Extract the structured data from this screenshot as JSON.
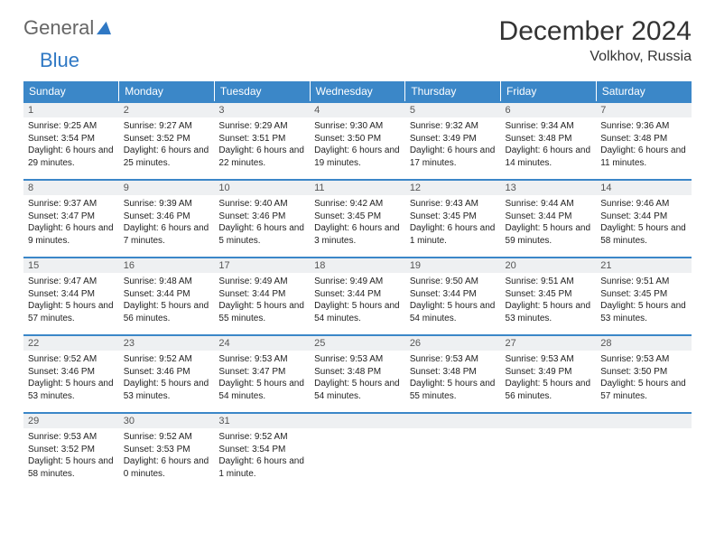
{
  "logo": {
    "text1": "General",
    "text2": "Blue"
  },
  "title": "December 2024",
  "location": "Volkhov, Russia",
  "colors": {
    "header_bg": "#3b87c8",
    "header_text": "#ffffff",
    "daynum_bg": "#eef0f2",
    "text": "#222222",
    "logo_blue": "#2f78c4"
  },
  "day_headers": [
    "Sunday",
    "Monday",
    "Tuesday",
    "Wednesday",
    "Thursday",
    "Friday",
    "Saturday"
  ],
  "weeks": [
    [
      {
        "n": "1",
        "sunrise": "Sunrise: 9:25 AM",
        "sunset": "Sunset: 3:54 PM",
        "day": "Daylight: 6 hours and 29 minutes."
      },
      {
        "n": "2",
        "sunrise": "Sunrise: 9:27 AM",
        "sunset": "Sunset: 3:52 PM",
        "day": "Daylight: 6 hours and 25 minutes."
      },
      {
        "n": "3",
        "sunrise": "Sunrise: 9:29 AM",
        "sunset": "Sunset: 3:51 PM",
        "day": "Daylight: 6 hours and 22 minutes."
      },
      {
        "n": "4",
        "sunrise": "Sunrise: 9:30 AM",
        "sunset": "Sunset: 3:50 PM",
        "day": "Daylight: 6 hours and 19 minutes."
      },
      {
        "n": "5",
        "sunrise": "Sunrise: 9:32 AM",
        "sunset": "Sunset: 3:49 PM",
        "day": "Daylight: 6 hours and 17 minutes."
      },
      {
        "n": "6",
        "sunrise": "Sunrise: 9:34 AM",
        "sunset": "Sunset: 3:48 PM",
        "day": "Daylight: 6 hours and 14 minutes."
      },
      {
        "n": "7",
        "sunrise": "Sunrise: 9:36 AM",
        "sunset": "Sunset: 3:48 PM",
        "day": "Daylight: 6 hours and 11 minutes."
      }
    ],
    [
      {
        "n": "8",
        "sunrise": "Sunrise: 9:37 AM",
        "sunset": "Sunset: 3:47 PM",
        "day": "Daylight: 6 hours and 9 minutes."
      },
      {
        "n": "9",
        "sunrise": "Sunrise: 9:39 AM",
        "sunset": "Sunset: 3:46 PM",
        "day": "Daylight: 6 hours and 7 minutes."
      },
      {
        "n": "10",
        "sunrise": "Sunrise: 9:40 AM",
        "sunset": "Sunset: 3:46 PM",
        "day": "Daylight: 6 hours and 5 minutes."
      },
      {
        "n": "11",
        "sunrise": "Sunrise: 9:42 AM",
        "sunset": "Sunset: 3:45 PM",
        "day": "Daylight: 6 hours and 3 minutes."
      },
      {
        "n": "12",
        "sunrise": "Sunrise: 9:43 AM",
        "sunset": "Sunset: 3:45 PM",
        "day": "Daylight: 6 hours and 1 minute."
      },
      {
        "n": "13",
        "sunrise": "Sunrise: 9:44 AM",
        "sunset": "Sunset: 3:44 PM",
        "day": "Daylight: 5 hours and 59 minutes."
      },
      {
        "n": "14",
        "sunrise": "Sunrise: 9:46 AM",
        "sunset": "Sunset: 3:44 PM",
        "day": "Daylight: 5 hours and 58 minutes."
      }
    ],
    [
      {
        "n": "15",
        "sunrise": "Sunrise: 9:47 AM",
        "sunset": "Sunset: 3:44 PM",
        "day": "Daylight: 5 hours and 57 minutes."
      },
      {
        "n": "16",
        "sunrise": "Sunrise: 9:48 AM",
        "sunset": "Sunset: 3:44 PM",
        "day": "Daylight: 5 hours and 56 minutes."
      },
      {
        "n": "17",
        "sunrise": "Sunrise: 9:49 AM",
        "sunset": "Sunset: 3:44 PM",
        "day": "Daylight: 5 hours and 55 minutes."
      },
      {
        "n": "18",
        "sunrise": "Sunrise: 9:49 AM",
        "sunset": "Sunset: 3:44 PM",
        "day": "Daylight: 5 hours and 54 minutes."
      },
      {
        "n": "19",
        "sunrise": "Sunrise: 9:50 AM",
        "sunset": "Sunset: 3:44 PM",
        "day": "Daylight: 5 hours and 54 minutes."
      },
      {
        "n": "20",
        "sunrise": "Sunrise: 9:51 AM",
        "sunset": "Sunset: 3:45 PM",
        "day": "Daylight: 5 hours and 53 minutes."
      },
      {
        "n": "21",
        "sunrise": "Sunrise: 9:51 AM",
        "sunset": "Sunset: 3:45 PM",
        "day": "Daylight: 5 hours and 53 minutes."
      }
    ],
    [
      {
        "n": "22",
        "sunrise": "Sunrise: 9:52 AM",
        "sunset": "Sunset: 3:46 PM",
        "day": "Daylight: 5 hours and 53 minutes."
      },
      {
        "n": "23",
        "sunrise": "Sunrise: 9:52 AM",
        "sunset": "Sunset: 3:46 PM",
        "day": "Daylight: 5 hours and 53 minutes."
      },
      {
        "n": "24",
        "sunrise": "Sunrise: 9:53 AM",
        "sunset": "Sunset: 3:47 PM",
        "day": "Daylight: 5 hours and 54 minutes."
      },
      {
        "n": "25",
        "sunrise": "Sunrise: 9:53 AM",
        "sunset": "Sunset: 3:48 PM",
        "day": "Daylight: 5 hours and 54 minutes."
      },
      {
        "n": "26",
        "sunrise": "Sunrise: 9:53 AM",
        "sunset": "Sunset: 3:48 PM",
        "day": "Daylight: 5 hours and 55 minutes."
      },
      {
        "n": "27",
        "sunrise": "Sunrise: 9:53 AM",
        "sunset": "Sunset: 3:49 PM",
        "day": "Daylight: 5 hours and 56 minutes."
      },
      {
        "n": "28",
        "sunrise": "Sunrise: 9:53 AM",
        "sunset": "Sunset: 3:50 PM",
        "day": "Daylight: 5 hours and 57 minutes."
      }
    ],
    [
      {
        "n": "29",
        "sunrise": "Sunrise: 9:53 AM",
        "sunset": "Sunset: 3:52 PM",
        "day": "Daylight: 5 hours and 58 minutes."
      },
      {
        "n": "30",
        "sunrise": "Sunrise: 9:52 AM",
        "sunset": "Sunset: 3:53 PM",
        "day": "Daylight: 6 hours and 0 minutes."
      },
      {
        "n": "31",
        "sunrise": "Sunrise: 9:52 AM",
        "sunset": "Sunset: 3:54 PM",
        "day": "Daylight: 6 hours and 1 minute."
      },
      null,
      null,
      null,
      null
    ]
  ]
}
